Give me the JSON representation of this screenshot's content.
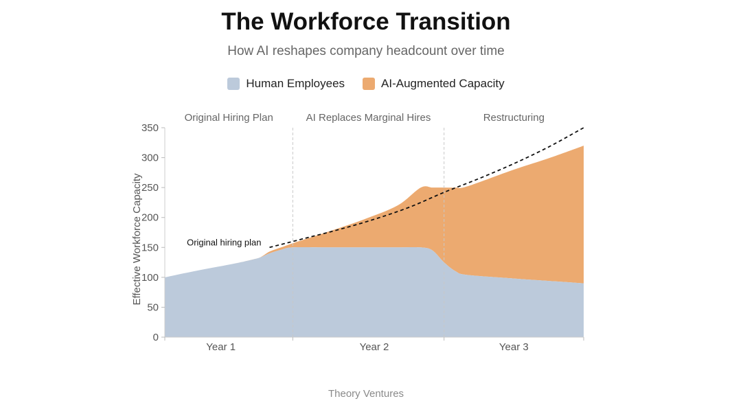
{
  "header": {
    "title": "The Workforce Transition",
    "subtitle": "How AI reshapes company headcount over time"
  },
  "footer": {
    "credit": "Theory Ventures"
  },
  "colors": {
    "human": "#bccadb",
    "ai": "#ecaa70",
    "plan_line": "#111111",
    "divider": "#c8c8c8",
    "axis_text": "#555555",
    "phase_text": "#666666"
  },
  "chart_data": {
    "type": "area",
    "stacked": true,
    "title": "The Workforce Transition",
    "subtitle": "How AI reshapes company headcount over time",
    "xlabel": "",
    "ylabel": "Effective Workforce Capacity",
    "ylim": [
      0,
      350
    ],
    "yticks": [
      0,
      50,
      100,
      150,
      200,
      250,
      300,
      350
    ],
    "xlim": [
      0,
      36
    ],
    "grid": false,
    "legend_position": "top-center",
    "categories": [
      {
        "label": "Year 1",
        "x": 6
      },
      {
        "label": "Year 2",
        "x": 18
      },
      {
        "label": "Year 3",
        "x": 30
      }
    ],
    "phases": [
      {
        "label": "Original Hiring Plan",
        "start": 0,
        "end": 11
      },
      {
        "label": "AI Replaces Marginal Hires",
        "start": 11,
        "end": 24
      },
      {
        "label": "Restructuring",
        "start": 24,
        "end": 36
      }
    ],
    "series": [
      {
        "name": "Human Employees",
        "color": "#bccadb",
        "x": [
          0,
          3,
          6,
          8,
          9,
          10,
          11,
          14,
          17,
          20,
          22,
          23,
          24,
          25,
          26,
          30,
          33,
          36
        ],
        "values": [
          100,
          112,
          123,
          132,
          140,
          146,
          150,
          150,
          150,
          150,
          150,
          145,
          125,
          110,
          104,
          98,
          94,
          90
        ]
      },
      {
        "name": "AI-Augmented Capacity",
        "color": "#ecaa70",
        "x": [
          0,
          3,
          6,
          8,
          9,
          10,
          11,
          14,
          17,
          20,
          22,
          23,
          24,
          25,
          26,
          30,
          33,
          36
        ],
        "values": [
          0,
          0,
          0,
          0,
          3,
          4,
          7,
          26,
          46,
          70,
          100,
          105,
          125,
          140,
          148,
          182,
          205,
          230
        ]
      }
    ],
    "reference_line": {
      "name": "Original hiring plan",
      "label": "Original hiring plan",
      "style": "dashed",
      "x": [
        9,
        12,
        15,
        18,
        21,
        24,
        27,
        30,
        33,
        36
      ],
      "values": [
        150,
        165,
        180,
        197,
        217,
        242,
        265,
        290,
        318,
        350
      ]
    }
  }
}
